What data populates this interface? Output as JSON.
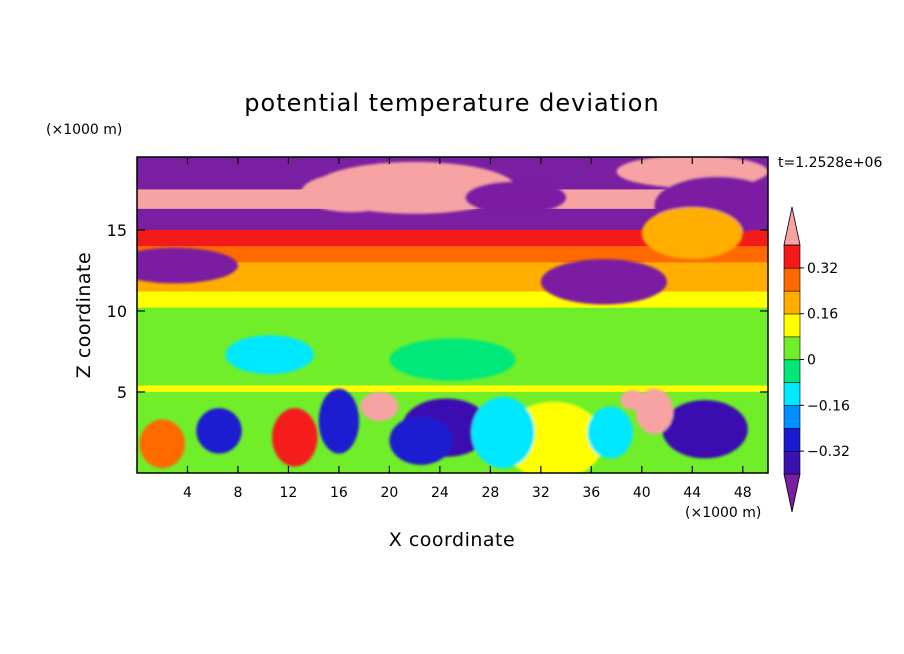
{
  "chart_data": {
    "type": "heatmap",
    "title": "potential temperature deviation",
    "xlabel": "X coordinate",
    "ylabel": "Z coordinate",
    "x_unit": "(×1000 m)",
    "y_unit": "(×1000 m)",
    "time_label": "t=1.2528e+06",
    "xlim": [
      0,
      50
    ],
    "ylim": [
      0,
      19.5
    ],
    "x_ticks": [
      4,
      8,
      12,
      16,
      20,
      24,
      28,
      32,
      36,
      40,
      44,
      48
    ],
    "y_ticks": [
      5,
      10,
      15
    ],
    "colorbar": {
      "levels": [
        -0.4,
        -0.32,
        -0.24,
        -0.16,
        -0.08,
        0,
        0.08,
        0.16,
        0.24,
        0.32,
        0.4
      ],
      "labels": [
        "0.32",
        "0.16",
        "0",
        "−0.16",
        "−0.32"
      ],
      "label_values": [
        0.32,
        0.16,
        0,
        -0.16,
        -0.32
      ],
      "extend": "both",
      "colors": [
        "#7b1fa2",
        "#3b0fb0",
        "#1a1ad0",
        "#0090ff",
        "#00e8ff",
        "#00e87a",
        "#70ee2a",
        "#ffff00",
        "#ffae00",
        "#ff6a00",
        "#f51a1a",
        "#f7a3a3"
      ]
    },
    "bands": [
      {
        "z": [
          17.5,
          19.5
        ],
        "value": -0.5
      },
      {
        "z": [
          16.3,
          17.5
        ],
        "value": 0.5
      },
      {
        "z": [
          15.0,
          16.3
        ],
        "value": -0.45
      },
      {
        "z": [
          14.0,
          15.0
        ],
        "value": 0.36
      },
      {
        "z": [
          13.0,
          14.0
        ],
        "value": 0.3
      },
      {
        "z": [
          12.0,
          13.0
        ],
        "value": 0.22
      },
      {
        "z": [
          11.2,
          12.0
        ],
        "value": 0.17
      },
      {
        "z": [
          10.2,
          11.2
        ],
        "value": 0.08
      },
      {
        "z": [
          9.0,
          10.2
        ],
        "value": 0.01
      },
      {
        "z": [
          8.2,
          9.0
        ],
        "value": 0.05
      },
      {
        "z": [
          5.4,
          8.2
        ],
        "value": 0.03
      },
      {
        "z": [
          5.0,
          5.4
        ],
        "value": 0.1
      },
      {
        "z": [
          0,
          5.0
        ],
        "value": 0.06
      }
    ],
    "blobs": [
      {
        "x": 22,
        "z": 17.6,
        "rx": 8,
        "rz": 1.6,
        "value": 0.5
      },
      {
        "x": 17,
        "z": 17.3,
        "rx": 4,
        "rz": 1.2,
        "value": 0.5
      },
      {
        "x": 44,
        "z": 18.6,
        "rx": 6,
        "rz": 1.0,
        "value": 0.5
      },
      {
        "x": 30,
        "z": 17.0,
        "rx": 4,
        "rz": 1.0,
        "value": -0.5
      },
      {
        "x": 46,
        "z": 16.5,
        "rx": 5,
        "rz": 1.8,
        "value": -0.5
      },
      {
        "x": 3,
        "z": 12.8,
        "rx": 5,
        "rz": 1.1,
        "value": -0.5
      },
      {
        "x": 37,
        "z": 11.8,
        "rx": 5,
        "rz": 1.4,
        "value": -0.5
      },
      {
        "x": 44,
        "z": 14.8,
        "rx": 4,
        "rz": 1.6,
        "value": 0.18
      },
      {
        "x": 10.5,
        "z": 7.3,
        "rx": 3.5,
        "rz": 1.2,
        "value": -0.1
      },
      {
        "x": 25,
        "z": 7.0,
        "rx": 5,
        "rz": 1.3,
        "value": -0.02
      },
      {
        "x": 24.5,
        "z": 2.8,
        "rx": 3.5,
        "rz": 1.8,
        "value": -0.36
      },
      {
        "x": 22.5,
        "z": 2.0,
        "rx": 2.5,
        "rz": 1.5,
        "value": -0.25
      },
      {
        "x": 45,
        "z": 2.7,
        "rx": 3.4,
        "rz": 1.8,
        "value": -0.4
      },
      {
        "x": 6.5,
        "z": 2.6,
        "rx": 1.8,
        "rz": 1.4,
        "value": -0.3
      },
      {
        "x": 12.5,
        "z": 2.2,
        "rx": 1.8,
        "rz": 1.8,
        "value": 0.32
      },
      {
        "x": 33,
        "z": 2.0,
        "rx": 4,
        "rz": 2.4,
        "value": 0.15
      },
      {
        "x": 2,
        "z": 1.8,
        "rx": 1.8,
        "rz": 1.5,
        "value": 0.3
      },
      {
        "x": 16,
        "z": 3.2,
        "rx": 1.6,
        "rz": 2.0,
        "value": -0.3
      },
      {
        "x": 19.2,
        "z": 4.1,
        "rx": 1.5,
        "rz": 0.9,
        "value": 0.5
      },
      {
        "x": 41,
        "z": 3.8,
        "rx": 1.5,
        "rz": 1.4,
        "value": 0.5
      },
      {
        "x": 39.3,
        "z": 4.5,
        "rx": 1.0,
        "rz": 0.6,
        "value": 0.5
      },
      {
        "x": 29,
        "z": 2.5,
        "rx": 2.5,
        "rz": 2.2,
        "value": -0.1
      },
      {
        "x": 37.5,
        "z": 2.5,
        "rx": 1.8,
        "rz": 1.6,
        "value": -0.12
      }
    ]
  }
}
